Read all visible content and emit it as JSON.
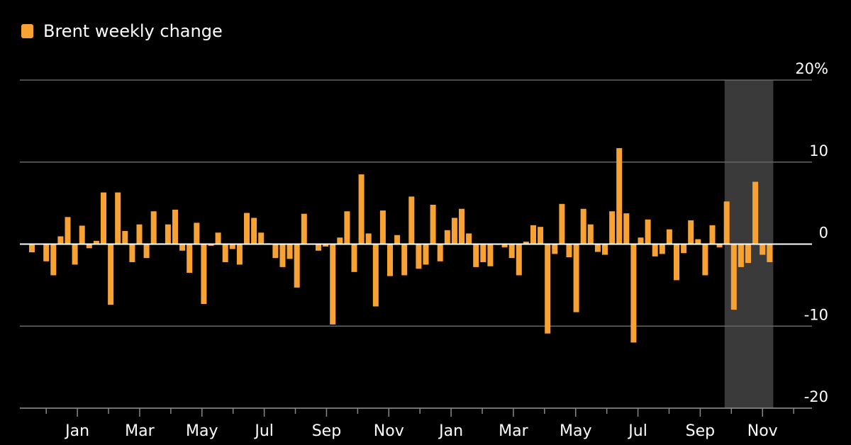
{
  "chart_data": {
    "type": "bar",
    "title": "",
    "legend": {
      "entries": [
        "Brent weekly change"
      ],
      "placement": "top-left"
    },
    "series": [
      {
        "name": "Brent weekly change",
        "color": "#F7A233",
        "values": [
          -1.0,
          0,
          -2.1,
          -3.8,
          0.95,
          3.3,
          -2.5,
          2.25,
          -0.5,
          0.4,
          6.3,
          -7.4,
          6.3,
          1.6,
          -2.2,
          2.4,
          -1.7,
          4.0,
          0.1,
          2.4,
          4.2,
          -0.8,
          -3.5,
          2.6,
          -7.3,
          -0.2,
          1.4,
          -2.2,
          -0.6,
          -2.5,
          3.8,
          3.2,
          1.4,
          0.1,
          -1.7,
          -2.8,
          -1.8,
          -5.3,
          3.7,
          0,
          -0.8,
          -0.3,
          -9.8,
          0.8,
          4.0,
          -3.4,
          8.5,
          1.3,
          -7.6,
          4.1,
          -3.9,
          1.1,
          -3.8,
          5.8,
          -3.0,
          -2.5,
          4.8,
          -2.1,
          1.7,
          3.2,
          4.3,
          1.3,
          -2.8,
          -2.2,
          -2.7,
          -0.1,
          -0.4,
          -1.7,
          -3.8,
          0.3,
          2.3,
          2.1,
          -10.9,
          -1.2,
          4.9,
          -1.6,
          -8.3,
          4.3,
          2.4,
          -0.95,
          -1.3,
          4.0,
          11.7,
          3.75,
          -12.0,
          0.8,
          3.0,
          -1.5,
          -1.2,
          1.8,
          -4.4,
          -1.1,
          2.9,
          0.6,
          -3.8,
          2.3,
          -0.4,
          5.2,
          -8.0,
          -2.8,
          -2.3,
          7.6,
          -1.3,
          -2.2
        ]
      }
    ],
    "ylim": [
      -20,
      20
    ],
    "y_ticks": [
      {
        "value": 20,
        "label": "20%"
      },
      {
        "value": 10,
        "label": "10"
      },
      {
        "value": 0,
        "label": "0"
      },
      {
        "value": -10,
        "label": "-10"
      },
      {
        "value": -20,
        "label": "-20"
      }
    ],
    "x_month_ticks": [
      "",
      "Jan",
      "",
      "Mar",
      "",
      "May",
      "",
      "Jul",
      "",
      "Sep",
      "",
      "Nov",
      "",
      "Jan",
      "",
      "Mar",
      "",
      "May",
      "",
      "Jul",
      "",
      "Sep",
      "",
      "Nov",
      ""
    ],
    "highlight_last_weeks": 6,
    "highlight_color": "#3A3A3A",
    "grid": true,
    "xlabel": "",
    "ylabel": ""
  }
}
